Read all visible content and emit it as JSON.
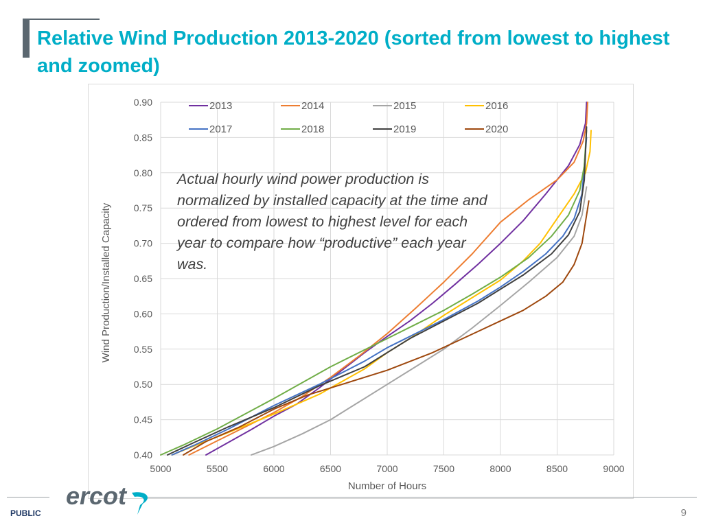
{
  "slide": {
    "title": "Relative Wind Production 2013-2020 (sorted from lowest to highest and zoomed)",
    "annotation": "Actual hourly wind power production is normalized by installed capacity at the time and ordered from lowest to highest level for each year to compare how “productive” each year was.",
    "classification": "PUBLIC",
    "page_number": "9",
    "logo_text": "ercot"
  },
  "colors": {
    "title": "#00aec7",
    "accent": "#5b6770",
    "2013": "#7030a0",
    "2014": "#ed7d31",
    "2015": "#a5a5a5",
    "2016": "#ffc000",
    "2017": "#4472c4",
    "2018": "#70ad47",
    "2019": "#404040",
    "2020": "#9e480e"
  },
  "chart_data": {
    "type": "line",
    "title": "",
    "xlabel": "Number of Hours",
    "ylabel": "Wind Production/Installed Capacity",
    "xlim": [
      5000,
      9000
    ],
    "ylim": [
      0.4,
      0.9
    ],
    "xticks": [
      5000,
      5500,
      6000,
      6500,
      7000,
      7500,
      8000,
      8500,
      9000
    ],
    "yticks": [
      0.4,
      0.45,
      0.5,
      0.55,
      0.6,
      0.65,
      0.7,
      0.75,
      0.8,
      0.85,
      0.9
    ],
    "xtick_labels": [
      "5000",
      "5500",
      "6000",
      "6500",
      "7000",
      "7500",
      "8000",
      "8500",
      "9000"
    ],
    "ytick_labels": [
      "0.40",
      "0.45",
      "0.50",
      "0.55",
      "0.60",
      "0.65",
      "0.70",
      "0.75",
      "0.80",
      "0.85",
      "0.90"
    ],
    "grid": true,
    "legend_position": "top",
    "series": [
      {
        "name": "2013",
        "x": [
          5400,
          5600,
          5800,
          6000,
          6200,
          6400,
          6600,
          6800,
          7000,
          7200,
          7400,
          7600,
          7800,
          8000,
          8200,
          8400,
          8600,
          8700,
          8750,
          8760
        ],
        "y": [
          0.4,
          0.418,
          0.436,
          0.455,
          0.472,
          0.495,
          0.52,
          0.545,
          0.568,
          0.59,
          0.615,
          0.642,
          0.67,
          0.7,
          0.732,
          0.77,
          0.81,
          0.84,
          0.87,
          0.9
        ]
      },
      {
        "name": "2014",
        "x": [
          5250,
          5500,
          5750,
          6000,
          6250,
          6500,
          6750,
          7000,
          7250,
          7500,
          7750,
          8000,
          8250,
          8500,
          8650,
          8730,
          8760,
          8770
        ],
        "y": [
          0.4,
          0.42,
          0.44,
          0.46,
          0.483,
          0.51,
          0.54,
          0.572,
          0.608,
          0.645,
          0.685,
          0.73,
          0.762,
          0.79,
          0.815,
          0.845,
          0.87,
          0.9
        ]
      },
      {
        "name": "2015",
        "x": [
          5800,
          6000,
          6250,
          6500,
          6750,
          7000,
          7250,
          7500,
          7750,
          8000,
          8250,
          8500,
          8650,
          8720,
          8760
        ],
        "y": [
          0.4,
          0.412,
          0.43,
          0.45,
          0.475,
          0.5,
          0.525,
          0.55,
          0.58,
          0.612,
          0.645,
          0.68,
          0.71,
          0.74,
          0.78
        ]
      },
      {
        "name": "2016",
        "x": [
          5100,
          5300,
          5600,
          6000,
          6400,
          6800,
          7000,
          7200,
          7500,
          7800,
          8000,
          8200,
          8350,
          8500,
          8650,
          8750,
          8790,
          8800
        ],
        "y": [
          0.4,
          0.413,
          0.432,
          0.458,
          0.486,
          0.522,
          0.545,
          0.565,
          0.598,
          0.628,
          0.648,
          0.675,
          0.7,
          0.735,
          0.77,
          0.8,
          0.83,
          0.86
        ]
      },
      {
        "name": "2017",
        "x": [
          5100,
          5300,
          5600,
          6000,
          6400,
          6800,
          7000,
          7200,
          7500,
          7800,
          8000,
          8200,
          8400,
          8550,
          8650,
          8720,
          8760
        ],
        "y": [
          0.4,
          0.414,
          0.437,
          0.47,
          0.5,
          0.533,
          0.552,
          0.568,
          0.592,
          0.618,
          0.638,
          0.66,
          0.685,
          0.71,
          0.735,
          0.77,
          0.85
        ]
      },
      {
        "name": "2018",
        "x": [
          5000,
          5200,
          5500,
          6000,
          6500,
          7000,
          7250,
          7500,
          7750,
          8000,
          8250,
          8450,
          8600,
          8700,
          8740,
          8760
        ],
        "y": [
          0.4,
          0.414,
          0.437,
          0.48,
          0.525,
          0.565,
          0.585,
          0.605,
          0.628,
          0.652,
          0.68,
          0.71,
          0.74,
          0.775,
          0.81,
          0.86
        ]
      },
      {
        "name": "2019",
        "x": [
          5060,
          5300,
          5600,
          6000,
          6400,
          6800,
          7000,
          7200,
          7500,
          7800,
          8000,
          8200,
          8450,
          8600,
          8700,
          8740,
          8760
        ],
        "y": [
          0.4,
          0.418,
          0.44,
          0.467,
          0.498,
          0.525,
          0.545,
          0.565,
          0.59,
          0.615,
          0.635,
          0.655,
          0.685,
          0.712,
          0.745,
          0.79,
          0.865
        ]
      },
      {
        "name": "2020",
        "x": [
          5200,
          5400,
          5700,
          6000,
          6300,
          6600,
          7000,
          7400,
          7800,
          8000,
          8200,
          8400,
          8550,
          8650,
          8720,
          8760,
          8780
        ],
        "y": [
          0.4,
          0.419,
          0.44,
          0.465,
          0.485,
          0.5,
          0.52,
          0.545,
          0.575,
          0.59,
          0.605,
          0.625,
          0.645,
          0.67,
          0.7,
          0.74,
          0.76
        ]
      }
    ]
  }
}
